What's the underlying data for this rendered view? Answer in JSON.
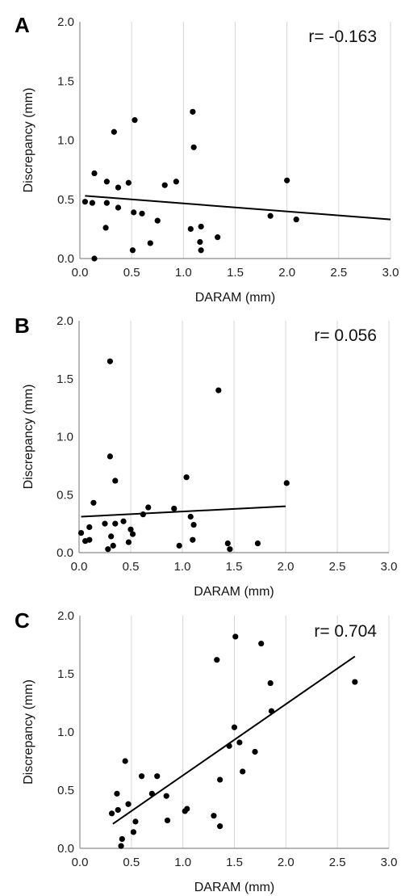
{
  "chart_data": [
    {
      "type": "scatter",
      "panel": "A",
      "annotation": "r= -0.163",
      "xlabel": "DARAM (mm)",
      "ylabel": "Discrepancy (mm)",
      "xlim": [
        0,
        3.0
      ],
      "ylim": [
        0,
        2.0
      ],
      "xticks": [
        "0.0",
        "0.5",
        "1.0",
        "1.5",
        "2.0",
        "2.5",
        "3.0"
      ],
      "yticks": [
        "0.0",
        "0.5",
        "1.0",
        "1.5",
        "2.0"
      ],
      "grid": true,
      "trendline": [
        [
          0.05,
          0.53
        ],
        [
          3.0,
          0.33
        ]
      ],
      "points": [
        [
          0.05,
          0.48
        ],
        [
          0.12,
          0.47
        ],
        [
          0.14,
          0.72
        ],
        [
          0.14,
          0.0
        ],
        [
          0.25,
          0.26
        ],
        [
          0.26,
          0.47
        ],
        [
          0.26,
          0.65
        ],
        [
          0.33,
          1.07
        ],
        [
          0.37,
          0.43
        ],
        [
          0.37,
          0.6
        ],
        [
          0.47,
          0.64
        ],
        [
          0.51,
          0.07
        ],
        [
          0.52,
          0.39
        ],
        [
          0.53,
          1.17
        ],
        [
          0.6,
          0.38
        ],
        [
          0.68,
          0.13
        ],
        [
          0.75,
          0.32
        ],
        [
          0.82,
          0.62
        ],
        [
          0.93,
          0.65
        ],
        [
          1.07,
          0.25
        ],
        [
          1.09,
          1.24
        ],
        [
          1.1,
          0.94
        ],
        [
          1.16,
          0.14
        ],
        [
          1.17,
          0.27
        ],
        [
          1.17,
          0.07
        ],
        [
          1.33,
          0.18
        ],
        [
          1.84,
          0.36
        ],
        [
          2.0,
          0.66
        ],
        [
          2.09,
          0.33
        ]
      ]
    },
    {
      "type": "scatter",
      "panel": "B",
      "annotation": "r= 0.056",
      "xlabel": "DARAM (mm)",
      "ylabel": "Discrepancy (mm)",
      "xlim": [
        0,
        3.0
      ],
      "ylim": [
        0,
        2.0
      ],
      "xticks": [
        "0.0",
        "0.5",
        "1.0",
        "1.5",
        "2.0",
        "2.5",
        "3.0"
      ],
      "yticks": [
        "0.0",
        "0.5",
        "1.0",
        "1.5",
        "2.0"
      ],
      "grid": true,
      "trendline": [
        [
          0.02,
          0.31
        ],
        [
          2.0,
          0.4
        ]
      ],
      "points": [
        [
          0.02,
          0.17
        ],
        [
          0.06,
          0.1
        ],
        [
          0.1,
          0.22
        ],
        [
          0.1,
          0.11
        ],
        [
          0.14,
          0.43
        ],
        [
          0.25,
          0.25
        ],
        [
          0.28,
          0.03
        ],
        [
          0.3,
          0.83
        ],
        [
          0.3,
          1.65
        ],
        [
          0.31,
          0.14
        ],
        [
          0.33,
          0.06
        ],
        [
          0.35,
          0.25
        ],
        [
          0.35,
          0.62
        ],
        [
          0.43,
          0.27
        ],
        [
          0.48,
          0.09
        ],
        [
          0.5,
          0.2
        ],
        [
          0.52,
          0.16
        ],
        [
          0.62,
          0.33
        ],
        [
          0.67,
          0.39
        ],
        [
          0.92,
          0.38
        ],
        [
          0.97,
          0.06
        ],
        [
          1.04,
          0.65
        ],
        [
          1.08,
          0.31
        ],
        [
          1.1,
          0.11
        ],
        [
          1.11,
          0.24
        ],
        [
          1.35,
          1.4
        ],
        [
          1.44,
          0.08
        ],
        [
          1.46,
          0.03
        ],
        [
          1.73,
          0.08
        ],
        [
          2.01,
          0.6
        ]
      ]
    },
    {
      "type": "scatter",
      "panel": "C",
      "annotation": "r= 0.704",
      "xlabel": "DARAM (mm)",
      "ylabel": "Discrepancy (mm)",
      "xlim": [
        0,
        3.0
      ],
      "ylim": [
        0,
        2.0
      ],
      "xticks": [
        "0.0",
        "0.5",
        "1.0",
        "1.5",
        "2.0",
        "2.5",
        "3.0"
      ],
      "yticks": [
        "0.0",
        "0.5",
        "1.0",
        "1.5",
        "2.0"
      ],
      "grid": true,
      "trendline": [
        [
          0.32,
          0.21
        ],
        [
          2.67,
          1.65
        ]
      ],
      "points": [
        [
          0.31,
          0.3
        ],
        [
          0.36,
          0.47
        ],
        [
          0.37,
          0.33
        ],
        [
          0.4,
          0.02
        ],
        [
          0.41,
          0.08
        ],
        [
          0.44,
          0.75
        ],
        [
          0.47,
          0.38
        ],
        [
          0.52,
          0.14
        ],
        [
          0.54,
          0.23
        ],
        [
          0.6,
          0.62
        ],
        [
          0.7,
          0.47
        ],
        [
          0.75,
          0.62
        ],
        [
          0.84,
          0.45
        ],
        [
          0.85,
          0.24
        ],
        [
          1.02,
          0.32
        ],
        [
          1.04,
          0.34
        ],
        [
          1.3,
          0.28
        ],
        [
          1.33,
          1.62
        ],
        [
          1.36,
          0.59
        ],
        [
          1.36,
          0.19
        ],
        [
          1.45,
          0.88
        ],
        [
          1.5,
          1.04
        ],
        [
          1.51,
          1.82
        ],
        [
          1.55,
          0.91
        ],
        [
          1.58,
          0.66
        ],
        [
          1.7,
          0.83
        ],
        [
          1.76,
          1.76
        ],
        [
          1.85,
          1.42
        ],
        [
          1.86,
          1.18
        ],
        [
          2.67,
          1.43
        ]
      ]
    }
  ]
}
